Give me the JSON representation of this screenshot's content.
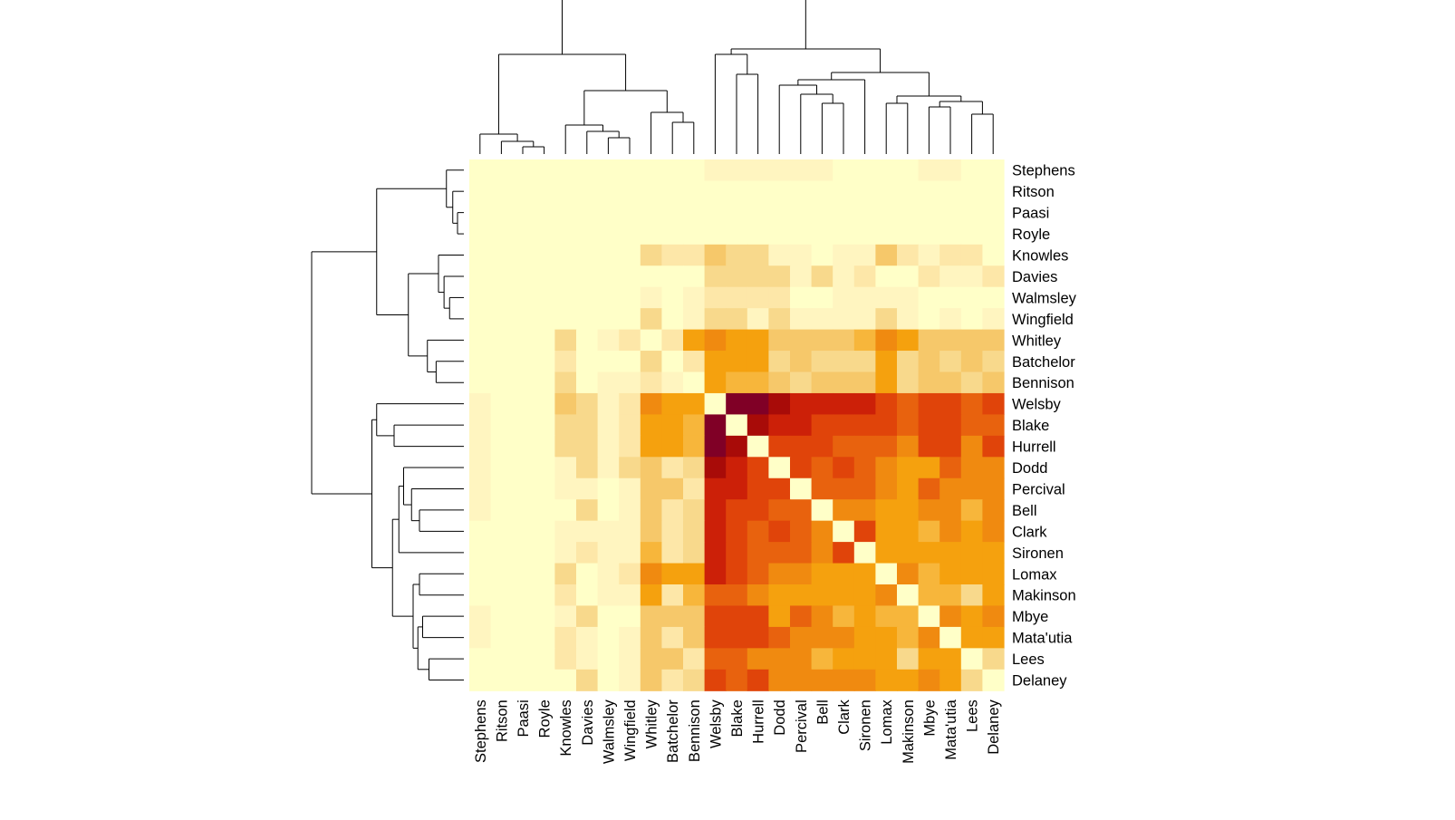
{
  "chart_data": {
    "type": "heatmap",
    "title": "",
    "xlabel": "",
    "ylabel": "",
    "rows": [
      "Stephens",
      "Ritson",
      "Paasi",
      "Royle",
      "Knowles",
      "Davies",
      "Walmsley",
      "Wingfield",
      "Whitley",
      "Batchelor",
      "Bennison",
      "Welsby",
      "Blake",
      "Hurrell",
      "Dodd",
      "Percival",
      "Bell",
      "Clark",
      "Sironen",
      "Lomax",
      "Makinson",
      "Mbye",
      "Mata'utia",
      "Lees",
      "Delaney"
    ],
    "columns": [
      "Stephens",
      "Ritson",
      "Paasi",
      "Royle",
      "Knowles",
      "Davies",
      "Walmsley",
      "Wingfield",
      "Whitley",
      "Batchelor",
      "Bennison",
      "Welsby",
      "Blake",
      "Hurrell",
      "Dodd",
      "Percival",
      "Bell",
      "Clark",
      "Sironen",
      "Lomax",
      "Makinson",
      "Mbye",
      "Mata'utia",
      "Lees",
      "Delaney"
    ],
    "color_scale": [
      "#ffffc8",
      "#fff5c0",
      "#fde7a8",
      "#f8d98c",
      "#f6c86a",
      "#f7b63b",
      "#f5a10e",
      "#f08a10",
      "#e8620e",
      "#e0440a",
      "#cc2008",
      "#a80b08",
      "#800026"
    ],
    "color_scale_note": "level 0 = lightest, 12 = darkest",
    "values": [
      [
        0,
        0,
        0,
        0,
        0,
        0,
        0,
        0,
        0,
        0,
        0,
        1,
        1,
        1,
        1,
        1,
        1,
        0,
        0,
        0,
        0,
        1,
        1,
        0,
        0
      ],
      [
        0,
        0,
        0,
        0,
        0,
        0,
        0,
        0,
        0,
        0,
        0,
        0,
        0,
        0,
        0,
        0,
        0,
        0,
        0,
        0,
        0,
        0,
        0,
        0,
        0
      ],
      [
        0,
        0,
        0,
        0,
        0,
        0,
        0,
        0,
        0,
        0,
        0,
        0,
        0,
        0,
        0,
        0,
        0,
        0,
        0,
        0,
        0,
        0,
        0,
        0,
        0
      ],
      [
        0,
        0,
        0,
        0,
        0,
        0,
        0,
        0,
        0,
        0,
        0,
        0,
        0,
        0,
        0,
        0,
        0,
        0,
        0,
        0,
        0,
        0,
        0,
        0,
        0
      ],
      [
        0,
        0,
        0,
        0,
        0,
        0,
        0,
        0,
        3,
        2,
        2,
        4,
        3,
        3,
        1,
        1,
        0,
        1,
        1,
        4,
        2,
        1,
        2,
        2,
        0
      ],
      [
        0,
        0,
        0,
        0,
        0,
        0,
        0,
        0,
        0,
        0,
        0,
        3,
        3,
        3,
        3,
        1,
        3,
        1,
        2,
        0,
        0,
        2,
        1,
        1,
        2
      ],
      [
        0,
        0,
        0,
        0,
        0,
        0,
        0,
        0,
        1,
        0,
        1,
        2,
        2,
        2,
        2,
        0,
        0,
        1,
        1,
        1,
        1,
        0,
        0,
        0,
        0
      ],
      [
        0,
        0,
        0,
        0,
        0,
        0,
        0,
        0,
        3,
        0,
        1,
        3,
        3,
        1,
        3,
        1,
        1,
        1,
        1,
        3,
        1,
        0,
        1,
        0,
        1
      ],
      [
        0,
        0,
        0,
        0,
        3,
        0,
        1,
        2,
        0,
        2,
        6,
        7,
        6,
        6,
        4,
        4,
        4,
        4,
        5,
        7,
        6,
        4,
        4,
        4,
        4
      ],
      [
        0,
        0,
        0,
        0,
        2,
        0,
        0,
        0,
        3,
        0,
        2,
        6,
        6,
        6,
        3,
        4,
        3,
        3,
        3,
        6,
        3,
        4,
        3,
        4,
        3
      ],
      [
        0,
        0,
        0,
        0,
        3,
        0,
        1,
        1,
        2,
        1,
        0,
        6,
        5,
        5,
        4,
        3,
        4,
        4,
        4,
        6,
        3,
        4,
        4,
        3,
        4
      ],
      [
        1,
        0,
        0,
        0,
        4,
        3,
        1,
        2,
        7,
        6,
        6,
        0,
        12,
        12,
        11,
        10,
        10,
        10,
        10,
        9,
        8,
        9,
        9,
        8,
        9
      ],
      [
        1,
        0,
        0,
        0,
        3,
        3,
        1,
        2,
        6,
        6,
        5,
        12,
        0,
        11,
        10,
        10,
        9,
        9,
        9,
        9,
        8,
        9,
        9,
        8,
        8
      ],
      [
        1,
        0,
        0,
        0,
        3,
        3,
        1,
        2,
        6,
        6,
        5,
        12,
        11,
        0,
        9,
        9,
        9,
        8,
        8,
        8,
        7,
        9,
        9,
        7,
        9
      ],
      [
        1,
        0,
        0,
        0,
        1,
        3,
        1,
        3,
        4,
        2,
        3,
        11,
        10,
        9,
        0,
        9,
        8,
        9,
        8,
        7,
        6,
        6,
        8,
        7,
        7
      ],
      [
        1,
        0,
        0,
        0,
        1,
        1,
        0,
        1,
        4,
        4,
        2,
        10,
        10,
        9,
        9,
        0,
        8,
        8,
        8,
        7,
        6,
        8,
        7,
        7,
        7
      ],
      [
        1,
        0,
        0,
        0,
        0,
        3,
        0,
        1,
        4,
        2,
        3,
        10,
        9,
        9,
        8,
        8,
        0,
        7,
        7,
        6,
        6,
        7,
        7,
        5,
        7
      ],
      [
        0,
        0,
        0,
        0,
        1,
        1,
        1,
        1,
        4,
        2,
        3,
        10,
        9,
        8,
        9,
        8,
        7,
        0,
        9,
        6,
        6,
        5,
        7,
        6,
        7
      ],
      [
        0,
        0,
        0,
        0,
        1,
        2,
        1,
        1,
        5,
        2,
        3,
        10,
        9,
        8,
        8,
        8,
        7,
        9,
        0,
        6,
        6,
        6,
        6,
        6,
        6
      ],
      [
        0,
        0,
        0,
        0,
        3,
        0,
        1,
        2,
        7,
        6,
        6,
        10,
        9,
        8,
        7,
        7,
        6,
        6,
        6,
        0,
        7,
        5,
        6,
        6,
        6
      ],
      [
        0,
        0,
        0,
        0,
        2,
        0,
        1,
        1,
        6,
        2,
        5,
        8,
        8,
        7,
        6,
        6,
        6,
        6,
        6,
        7,
        0,
        5,
        5,
        3,
        6
      ],
      [
        1,
        0,
        0,
        0,
        1,
        3,
        0,
        0,
        4,
        4,
        4,
        9,
        9,
        9,
        6,
        8,
        7,
        5,
        6,
        5,
        5,
        0,
        7,
        6,
        7
      ],
      [
        1,
        0,
        0,
        0,
        2,
        1,
        0,
        1,
        4,
        2,
        4,
        9,
        9,
        9,
        8,
        7,
        7,
        7,
        6,
        6,
        5,
        7,
        0,
        6,
        6
      ],
      [
        0,
        0,
        0,
        0,
        2,
        1,
        0,
        1,
        4,
        4,
        2,
        8,
        8,
        7,
        7,
        7,
        5,
        6,
        6,
        6,
        3,
        6,
        6,
        0,
        3
      ],
      [
        0,
        0,
        0,
        0,
        0,
        3,
        0,
        1,
        4,
        2,
        3,
        9,
        8,
        9,
        7,
        7,
        7,
        7,
        7,
        6,
        6,
        7,
        6,
        3,
        0
      ]
    ]
  }
}
